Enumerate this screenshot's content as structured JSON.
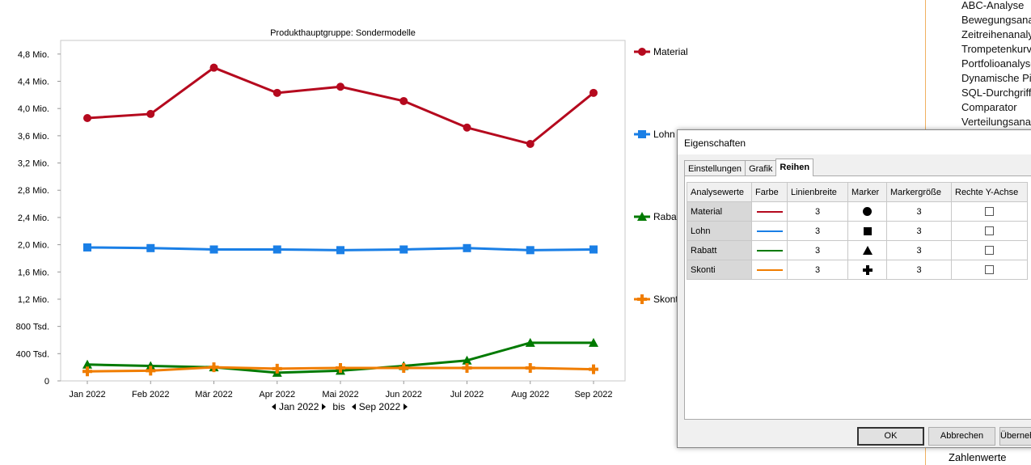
{
  "chart_data": {
    "type": "line",
    "title": "Produkthauptgruppe: Sondermodelle",
    "categories": [
      "Jan 2022",
      "Feb 2022",
      "Mär 2022",
      "Apr 2022",
      "Mai 2022",
      "Jun 2022",
      "Jul 2022",
      "Aug 2022",
      "Sep 2022"
    ],
    "y_ticks": [
      {
        "value": 0,
        "label": "0"
      },
      {
        "value": 400000,
        "label": "400 Tsd."
      },
      {
        "value": 800000,
        "label": "800 Tsd."
      },
      {
        "value": 1200000,
        "label": "1,2 Mio."
      },
      {
        "value": 1600000,
        "label": "1,6 Mio."
      },
      {
        "value": 2000000,
        "label": "2,0 Mio."
      },
      {
        "value": 2400000,
        "label": "2,4 Mio."
      },
      {
        "value": 2800000,
        "label": "2,8 Mio."
      },
      {
        "value": 3200000,
        "label": "3,2 Mio."
      },
      {
        "value": 3600000,
        "label": "3,6 Mio."
      },
      {
        "value": 4000000,
        "label": "4,0 Mio."
      },
      {
        "value": 4400000,
        "label": "4,4 Mio."
      },
      {
        "value": 4800000,
        "label": "4,8 Mio."
      }
    ],
    "ylim": [
      0,
      5000000
    ],
    "grid": false,
    "legend_position": "right",
    "series": [
      {
        "name": "Material",
        "color": "#b5091e",
        "marker": "circle",
        "values": [
          3860000,
          3920000,
          4600000,
          4230000,
          4320000,
          4110000,
          3720000,
          3480000,
          4230000
        ]
      },
      {
        "name": "Lohn",
        "color": "#1a7fe6",
        "marker": "square",
        "values": [
          1960000,
          1950000,
          1930000,
          1930000,
          1920000,
          1930000,
          1950000,
          1920000,
          1930000
        ]
      },
      {
        "name": "Rabatt",
        "color": "#007a00",
        "marker": "triangle",
        "values": [
          240000,
          220000,
          200000,
          120000,
          150000,
          220000,
          300000,
          560000,
          560000
        ]
      },
      {
        "name": "Skonti",
        "color": "#f07d00",
        "marker": "plus",
        "values": [
          140000,
          150000,
          200000,
          180000,
          190000,
          190000,
          190000,
          190000,
          170000
        ]
      }
    ]
  },
  "legend_labels": [
    "Material",
    "Lohn",
    "Rabatt",
    "Skonti"
  ],
  "period": {
    "from": "Jan 2022",
    "separator": "bis",
    "to": "Sep 2022"
  },
  "analysis_menu": [
    "ABC-Analyse",
    "Bewegungsanalyse",
    "Zeitreihenanalyse",
    "Trompetenkurve",
    "Portfolioanalyse",
    "Dynamische Pivot",
    "SQL-Durchgriff",
    "Comparator",
    "Verteilungsanalyse"
  ],
  "bottom_menu_item": "Zahlenwerte",
  "dialog": {
    "title": "Eigenschaften",
    "tabs": [
      "Einstellungen",
      "Grafik",
      "Reihen"
    ],
    "active_tab": "Reihen",
    "columns": [
      "Analysewerte",
      "Farbe",
      "Linienbreite",
      "Marker",
      "Markergröße",
      "Rechte Y-Achse"
    ],
    "rows": [
      {
        "name": "Material",
        "color": "#b5091e",
        "line_width": "3",
        "marker": "circle",
        "marker_size": "3",
        "right_axis": false
      },
      {
        "name": "Lohn",
        "color": "#1a7fe6",
        "line_width": "3",
        "marker": "square",
        "marker_size": "3",
        "right_axis": false
      },
      {
        "name": "Rabatt",
        "color": "#007a00",
        "line_width": "3",
        "marker": "triangle",
        "marker_size": "3",
        "right_axis": false
      },
      {
        "name": "Skonti",
        "color": "#f07d00",
        "line_width": "3",
        "marker": "plus",
        "marker_size": "3",
        "right_axis": false
      }
    ],
    "buttons": {
      "ok": "OK",
      "cancel": "Abbrechen",
      "apply": "Übernehmen"
    }
  }
}
